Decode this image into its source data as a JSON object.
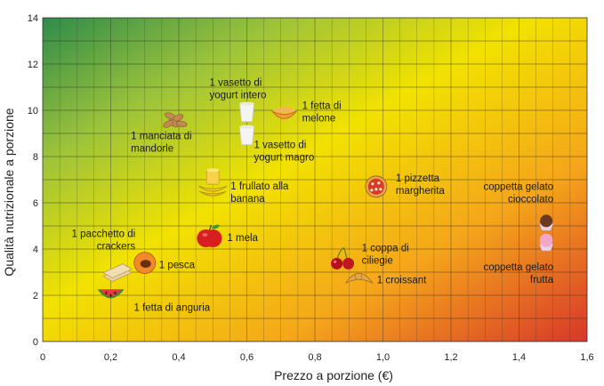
{
  "chart_data": {
    "type": "scatter",
    "xlabel": "Prezzo a porzione (€)",
    "ylabel": "Qualità nutrizionale a porzione",
    "xlim": [
      0,
      1.6
    ],
    "ylim": [
      0,
      14
    ],
    "x_ticks": [
      "0",
      "0,2",
      "0,4",
      "0,6",
      "0,8",
      "1,0",
      "1,2",
      "1,4",
      "1,6"
    ],
    "y_ticks": [
      "0",
      "2",
      "4",
      "6",
      "8",
      "10",
      "12",
      "14"
    ],
    "grid": true,
    "background": "gradient green (top-left) to yellow to red (bottom-right)",
    "colors": {
      "green": "#2e8b4a",
      "yellow": "#f5e400",
      "orange": "#f4a21a",
      "red": "#d8372a"
    },
    "points": [
      {
        "name": "1 manciata di mandorle",
        "label_lines": [
          "1 manciata di",
          "mandorle"
        ],
        "x": 0.39,
        "y": 9.6,
        "icon": "almonds-icon"
      },
      {
        "name": "1 vasetto di yogurt intero",
        "label_lines": [
          "1 vasetto di",
          "yogurt intero"
        ],
        "x": 0.6,
        "y": 9.9,
        "icon": "yogurt-icon"
      },
      {
        "name": "1 vasetto di yogurt magro",
        "label_lines": [
          "1 vasetto di",
          "yogurt magro"
        ],
        "x": 0.6,
        "y": 8.9,
        "icon": "yogurt-icon"
      },
      {
        "name": "1 fetta di melone",
        "label_lines": [
          "1 fetta di",
          "melone"
        ],
        "x": 0.71,
        "y": 9.9,
        "icon": "melon-icon"
      },
      {
        "name": "1 frullato alla banana",
        "label_lines": [
          "1 frullato alla",
          "banana"
        ],
        "x": 0.5,
        "y": 6.8,
        "icon": "banana-smoothie-icon"
      },
      {
        "name": "1 pizzetta margherita",
        "label_lines": [
          "1 pizzetta",
          "margherita"
        ],
        "x": 0.98,
        "y": 6.7,
        "icon": "pizza-icon"
      },
      {
        "name": "coppetta gelato cioccolato",
        "label_lines": [
          "coppetta gelato",
          "cioccolato"
        ],
        "x": 1.48,
        "y": 5.1,
        "icon": "chocolate-gelato-icon"
      },
      {
        "name": "1 pacchetto di crackers",
        "label_lines": [
          "1 pacchetto di",
          "crackers"
        ],
        "x": 0.22,
        "y": 2.9,
        "icon": "crackers-icon"
      },
      {
        "name": "1 pesca",
        "label_lines": [
          "1 pesca"
        ],
        "x": 0.3,
        "y": 3.4,
        "icon": "peach-icon"
      },
      {
        "name": "1 mela",
        "label_lines": [
          "1 mela"
        ],
        "x": 0.49,
        "y": 4.5,
        "icon": "apple-icon"
      },
      {
        "name": "1 fetta di anguria",
        "label_lines": [
          "1 fetta di anguria"
        ],
        "x": 0.2,
        "y": 2.1,
        "icon": "watermelon-icon"
      },
      {
        "name": "1 coppa di ciliegie",
        "label_lines": [
          "1 coppa di",
          "ciliegie"
        ],
        "x": 0.88,
        "y": 3.6,
        "icon": "cherries-icon"
      },
      {
        "name": "1 croissant",
        "label_lines": [
          "1 croissant"
        ],
        "x": 0.93,
        "y": 2.6,
        "icon": "croissant-icon"
      },
      {
        "name": "coppetta gelato frutta",
        "label_lines": [
          "coppetta gelato",
          "frutta"
        ],
        "x": 1.48,
        "y": 4.3,
        "icon": "fruit-gelato-icon"
      }
    ]
  }
}
